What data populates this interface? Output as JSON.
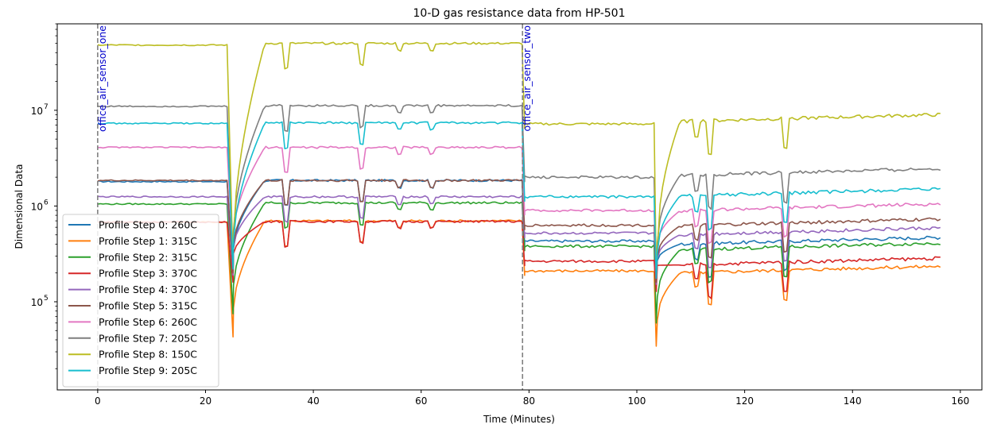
{
  "chart_data": {
    "type": "line",
    "title": "10-D gas resistance data from HP-501",
    "xlabel": "Time (Minutes)",
    "ylabel": "Dimensional Data",
    "xlim": [
      -7.5,
      164
    ],
    "ylim": [
      12000,
      80000000
    ],
    "yscale": "log",
    "x_ticks": [
      0,
      20,
      40,
      60,
      80,
      100,
      120,
      140,
      160
    ],
    "x_tick_labels": [
      "0",
      "20",
      "40",
      "60",
      "80",
      "100",
      "120",
      "140",
      "160"
    ],
    "y_ticks": [
      100000,
      1000000,
      10000000
    ],
    "y_tick_labels": [
      "10",
      "10",
      "10"
    ],
    "y_tick_exponents": [
      "5",
      "6",
      "7"
    ],
    "grid": false,
    "legend_position": "lower-left",
    "vlines": [
      {
        "x": 0,
        "label": "office_air_sensor_one",
        "color": "#808080",
        "text_color": "#0000cc"
      },
      {
        "x": 78.8,
        "label": "office_air_sensor_two",
        "color": "#808080",
        "text_color": "#0000cc"
      }
    ],
    "profile": {
      "segments": [
        [
          0,
          24.2
        ],
        [
          25.2,
          78.8
        ],
        [
          79.2,
          103.3
        ],
        [
          103.8,
          156.5
        ]
      ],
      "start_spikes": [
        {
          "x": 25.1,
          "value": 0.05
        },
        {
          "x": 103.6,
          "value": 0.08
        }
      ],
      "ramp_ends": [
        31,
        108
      ],
      "minor_dips": [
        {
          "x": 35,
          "depth": 0.55
        },
        {
          "x": 49,
          "depth": 0.6
        },
        {
          "x": 56,
          "depth": 0.85
        },
        {
          "x": 62,
          "depth": 0.85
        },
        {
          "x": 111,
          "depth": 0.7
        },
        {
          "x": 113.5,
          "depth": 0.45
        },
        {
          "x": 127.5,
          "depth": 0.5
        }
      ]
    },
    "series": [
      {
        "name": "Profile Step 0: 260C",
        "color": "#1f77b4",
        "levels": [
          1800000,
          1850000,
          430000,
          470000
        ],
        "spike_min": 180000
      },
      {
        "name": "Profile Step 1: 315C",
        "color": "#ff7f0e",
        "levels": [
          680000,
          700000,
          210000,
          235000
        ],
        "spike_min": 43000
      },
      {
        "name": "Profile Step 2: 315C",
        "color": "#2ca02c",
        "levels": [
          1050000,
          1080000,
          380000,
          410000
        ],
        "spike_min": 75000
      },
      {
        "name": "Profile Step 3: 370C",
        "color": "#d62728",
        "levels": [
          680000,
          690000,
          265000,
          285000
        ],
        "spike_min": 160000
      },
      {
        "name": "Profile Step 4: 370C",
        "color": "#9467bd",
        "levels": [
          1250000,
          1250000,
          520000,
          590000
        ],
        "spike_min": 190000
      },
      {
        "name": "Profile Step 5: 315C",
        "color": "#8c564b",
        "levels": [
          1850000,
          1850000,
          630000,
          730000
        ],
        "spike_min": 200000
      },
      {
        "name": "Profile Step 6: 260C",
        "color": "#e377c2",
        "levels": [
          4100000,
          4100000,
          900000,
          1050000
        ],
        "spike_min": 260000
      },
      {
        "name": "Profile Step 7: 205C",
        "color": "#7f7f7f",
        "levels": [
          11000000,
          11200000,
          2000000,
          2450000
        ],
        "spike_min": 280000
      },
      {
        "name": "Profile Step 8: 150C",
        "color": "#bcbd22",
        "levels": [
          48000000,
          50000000,
          7200000,
          9000000
        ],
        "spike_min": 240000
      },
      {
        "name": "Profile Step 9: 205C",
        "color": "#17becf",
        "levels": [
          7300000,
          7400000,
          1250000,
          1500000
        ],
        "spike_min": 220000
      }
    ]
  }
}
